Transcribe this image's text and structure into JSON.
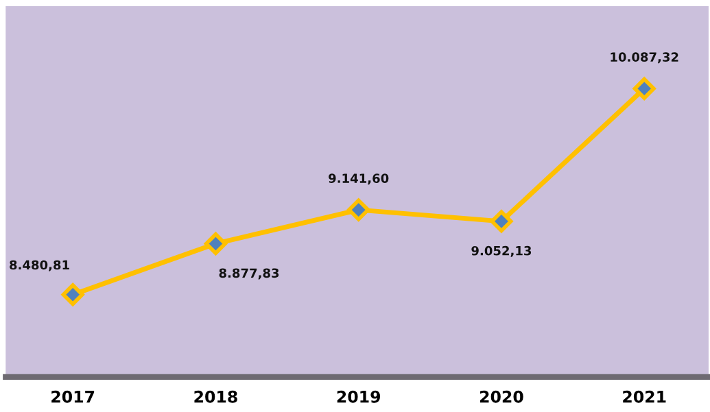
{
  "chart_data": {
    "type": "line",
    "categories": [
      "2017",
      "2018",
      "2019",
      "2020",
      "2021"
    ],
    "series": [
      {
        "color": "#ffc000",
        "values": [
          8480.81,
          8877.83,
          9141.6,
          9052.13,
          10087.32
        ],
        "value_labels": [
          "8.480,81",
          "8.877,83",
          "9.141,60",
          "9.052,13",
          "10.087,32"
        ]
      }
    ],
    "marker": "diamond",
    "line_style": "solid",
    "grid": false,
    "legend": false,
    "tick_labels": "x"
  }
}
